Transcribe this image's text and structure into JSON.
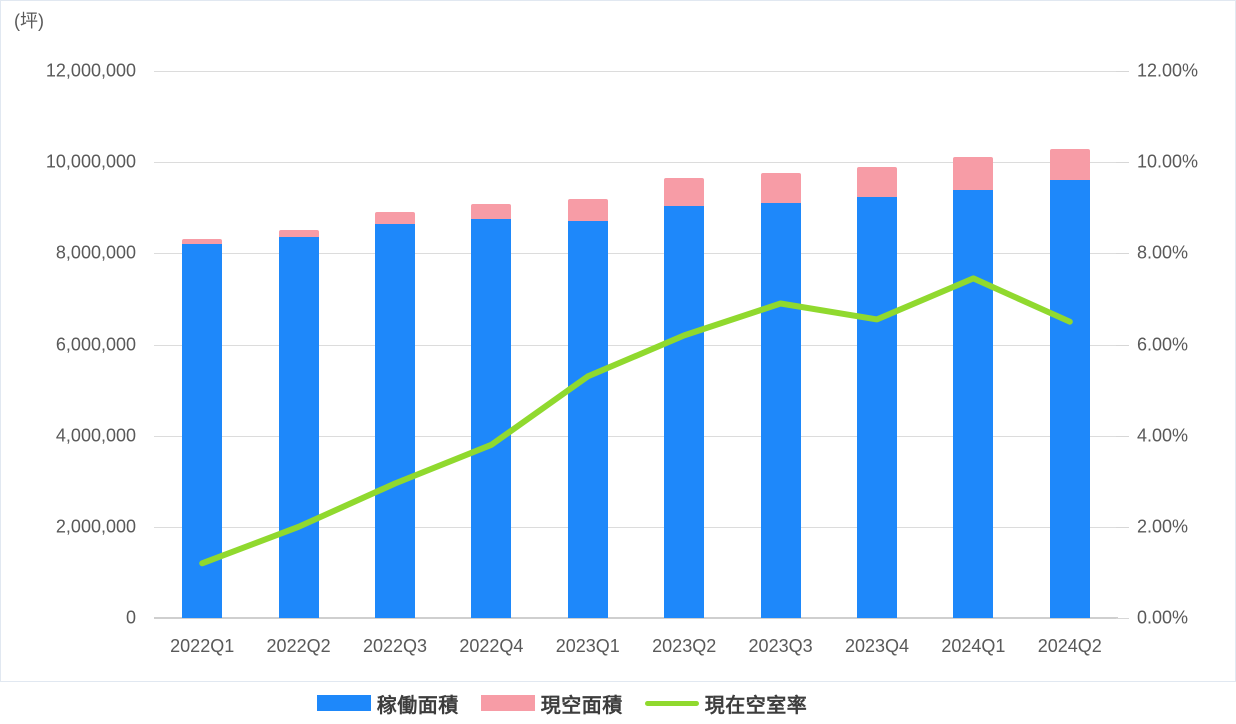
{
  "chart_data": {
    "type": "bar",
    "subtype": "stacked-bar-with-line-combo",
    "title": "",
    "unit_label": "(坪)",
    "legend_position": "bottom",
    "grid": true,
    "categories": [
      "2022Q1",
      "2022Q2",
      "2022Q3",
      "2022Q4",
      "2023Q1",
      "2023Q2",
      "2023Q3",
      "2023Q4",
      "2024Q1",
      "2024Q2"
    ],
    "series": [
      {
        "key": "operating-area",
        "name": "稼働面積",
        "type": "bar",
        "stack": true,
        "color": "#1E88FA",
        "values": [
          8200000,
          8350000,
          8650000,
          8750000,
          8720000,
          9050000,
          9100000,
          9230000,
          9380000,
          9620000
        ]
      },
      {
        "key": "vacant-area",
        "name": "現空面積",
        "type": "bar",
        "stack": true,
        "color": "#F79CA6",
        "values": [
          110000,
          170000,
          260000,
          330000,
          470000,
          600000,
          670000,
          670000,
          740000,
          660000
        ]
      },
      {
        "key": "vacancy-rate",
        "name": "現在空室率",
        "type": "line",
        "axis": "right",
        "color": "#90D92E",
        "values_percent": [
          1.2,
          2.0,
          2.95,
          3.8,
          5.3,
          6.2,
          6.9,
          6.55,
          7.45,
          6.5
        ]
      }
    ],
    "left_axis": {
      "min": 0,
      "max": 12000000,
      "tick_step": 2000000,
      "tick_labels": [
        "0",
        "2,000,000",
        "4,000,000",
        "6,000,000",
        "8,000,000",
        "10,000,000",
        "12,000,000"
      ]
    },
    "right_axis": {
      "min_percent": 0,
      "max_percent": 12,
      "tick_step_percent": 2,
      "tick_labels": [
        "0.00%",
        "2.00%",
        "4.00%",
        "6.00%",
        "8.00%",
        "10.00%",
        "12.00%"
      ]
    }
  }
}
